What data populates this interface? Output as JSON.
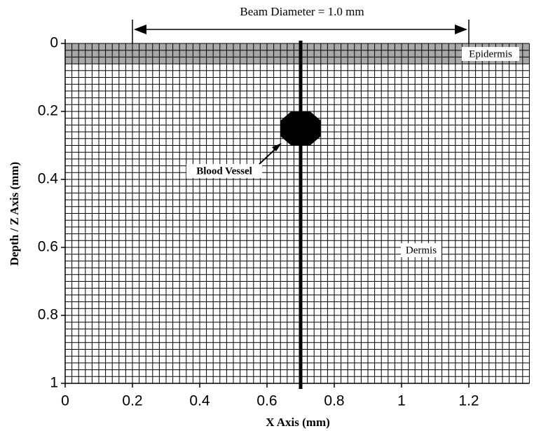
{
  "chart_data": {
    "type": "mesh",
    "title": "Beam Diameter = 1.0 mm",
    "x_label": "X Axis (mm)",
    "y_label": "Depth / Z Axis (mm)",
    "xlim": [
      0,
      1.38
    ],
    "ylim": [
      0,
      1
    ],
    "xticks": [
      0,
      0.2,
      0.4,
      0.6,
      0.8,
      1,
      1.2
    ],
    "yticks": [
      0,
      0.2,
      0.4,
      0.6,
      0.8,
      1
    ],
    "grid_spacing": 0.02,
    "beam": {
      "x": [
        0.2,
        1.2
      ],
      "center": 0.7
    },
    "layers": [
      {
        "name": "Epidermis",
        "depth": [
          0,
          0.06
        ]
      },
      {
        "name": "Dermis",
        "depth": [
          0.06,
          1
        ]
      }
    ],
    "vessel": {
      "label": "Blood Vessel",
      "center": [
        0.7,
        0.25
      ],
      "diameter": 0.12
    }
  }
}
